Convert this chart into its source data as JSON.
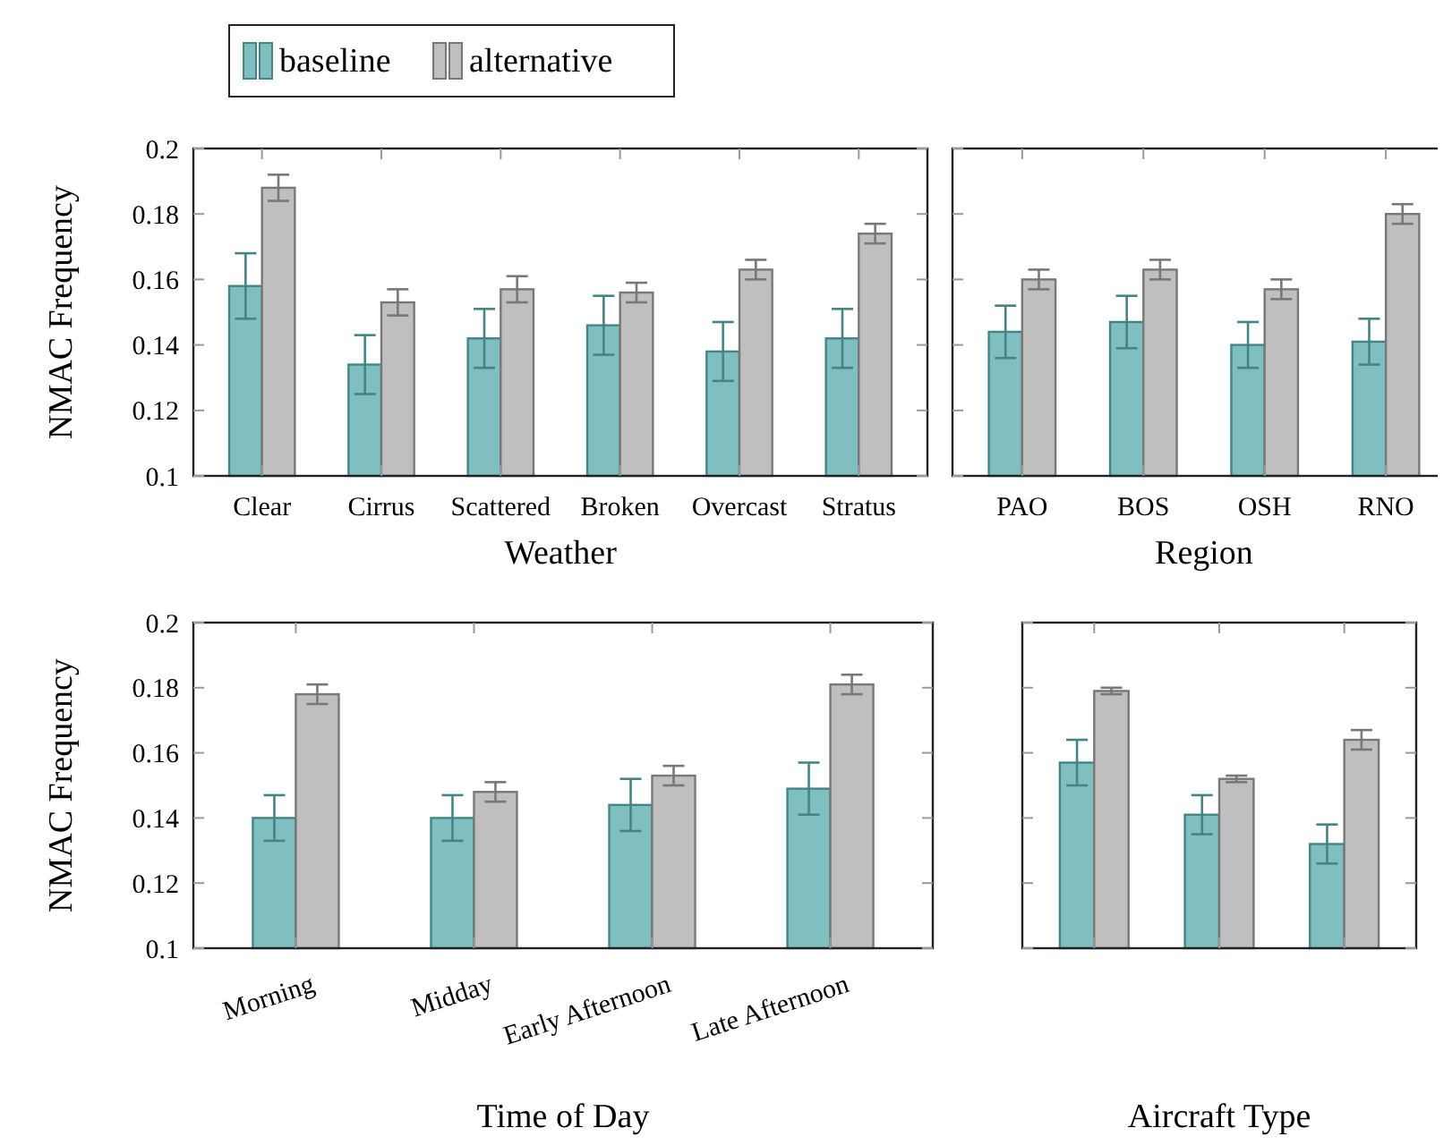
{
  "chart_data": [
    {
      "type": "bar",
      "xlabel": "Weather",
      "ylabel": "NMAC Frequency",
      "categories": [
        "Clear",
        "Cirrus",
        "Scattered",
        "Broken",
        "Overcast",
        "Stratus"
      ],
      "ylim": [
        0.1,
        0.2
      ],
      "yticks": [
        0.1,
        0.12,
        0.14,
        0.16,
        0.18,
        0.2
      ],
      "legend": "top left",
      "series": [
        {
          "name": "baseline",
          "color": "#80bfbf",
          "values": [
            0.158,
            0.134,
            0.142,
            0.146,
            0.138,
            0.142
          ],
          "errors": [
            0.01,
            0.009,
            0.009,
            0.009,
            0.009,
            0.009
          ]
        },
        {
          "name": "alternative",
          "color": "#bfbfbf",
          "values": [
            0.188,
            0.153,
            0.157,
            0.156,
            0.163,
            0.174
          ],
          "errors": [
            0.004,
            0.004,
            0.004,
            0.003,
            0.003,
            0.003
          ]
        }
      ]
    },
    {
      "type": "bar",
      "xlabel": "Region",
      "categories": [
        "PAO",
        "BOS",
        "OSH",
        "RNO"
      ],
      "ylim": [
        0.1,
        0.2
      ],
      "yticks": [
        0.1,
        0.12,
        0.14,
        0.16,
        0.18,
        0.2
      ],
      "tick_labels": "x",
      "series": [
        {
          "color": "#80bfbf",
          "values": [
            0.144,
            0.147,
            0.14,
            0.141
          ],
          "errors": [
            0.008,
            0.008,
            0.007,
            0.007
          ]
        },
        {
          "color": "#bfbfbf",
          "values": [
            0.16,
            0.163,
            0.157,
            0.18
          ],
          "errors": [
            0.003,
            0.003,
            0.003,
            0.003
          ]
        }
      ]
    },
    {
      "type": "bar",
      "xlabel": "Time of Day",
      "ylabel": "NMAC Frequency",
      "categories": [
        "Morning",
        "Midday",
        "Early Afternoon",
        "Late Afternoon"
      ],
      "ylim": [
        0.1,
        0.2
      ],
      "yticks": [
        0.1,
        0.12,
        0.14,
        0.16,
        0.18,
        0.2
      ],
      "series": [
        {
          "color": "#80bfbf",
          "values": [
            0.14,
            0.14,
            0.144,
            0.149
          ],
          "errors": [
            0.007,
            0.007,
            0.008,
            0.008
          ]
        },
        {
          "color": "#bfbfbf",
          "values": [
            0.178,
            0.148,
            0.153,
            0.181
          ],
          "errors": [
            0.003,
            0.003,
            0.003,
            0.003
          ]
        }
      ]
    },
    {
      "type": "bar",
      "xlabel": "Aircraft Type",
      "categories": [
        null,
        null,
        null
      ],
      "ylim": [
        0.1,
        0.2
      ],
      "yticks": [
        0.1,
        0.12,
        0.14,
        0.16,
        0.18,
        0.2
      ],
      "tick_labels": "x",
      "series": [
        {
          "color": "#80bfbf",
          "values": [
            0.157,
            0.141,
            0.132
          ],
          "errors": [
            0.007,
            0.006,
            0.006
          ]
        },
        {
          "color": "#bfbfbf",
          "values": [
            0.179,
            0.152,
            0.164
          ],
          "errors": [
            0.001,
            0.001,
            0.003
          ]
        }
      ]
    }
  ]
}
